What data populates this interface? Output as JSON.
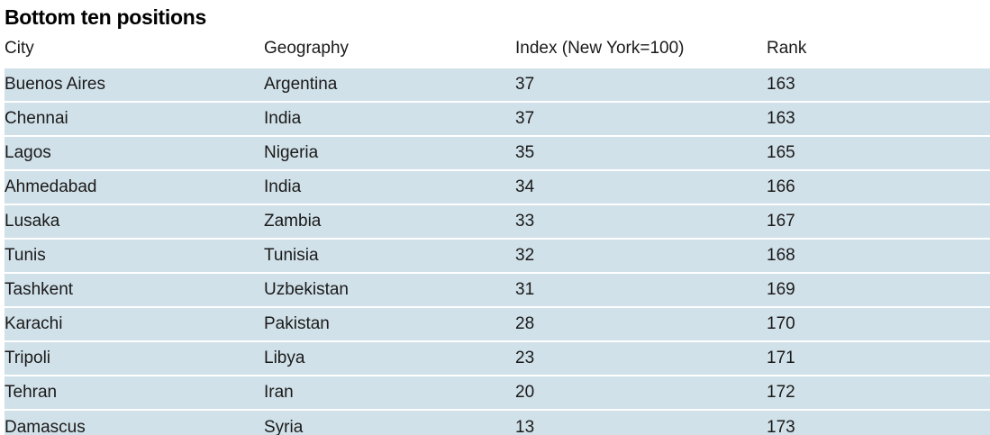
{
  "title": "Bottom ten positions",
  "table": {
    "headers": [
      "City",
      "Geography",
      "Index (New York=100)",
      "Rank"
    ],
    "rows": [
      [
        "Buenos Aires",
        "Argentina",
        "37",
        "163"
      ],
      [
        "Chennai",
        "India",
        "37",
        "163"
      ],
      [
        "Lagos",
        "Nigeria",
        "35",
        "165"
      ],
      [
        "Ahmedabad",
        "India",
        "34",
        "166"
      ],
      [
        "Lusaka",
        "Zambia",
        "33",
        "167"
      ],
      [
        "Tunis",
        "Tunisia",
        "32",
        "168"
      ],
      [
        "Tashkent",
        "Uzbekistan",
        "31",
        "169"
      ],
      [
        "Karachi",
        "Pakistan",
        "28",
        "170"
      ],
      [
        "Tripoli",
        "Libya",
        "23",
        "171"
      ],
      [
        "Tehran",
        "Iran",
        "20",
        "172"
      ],
      [
        "Damascus",
        "Syria",
        "13",
        "173"
      ]
    ]
  },
  "colors": {
    "row_band": "#d1e1e9",
    "text": "#1a1a1a",
    "title": "#000000"
  }
}
